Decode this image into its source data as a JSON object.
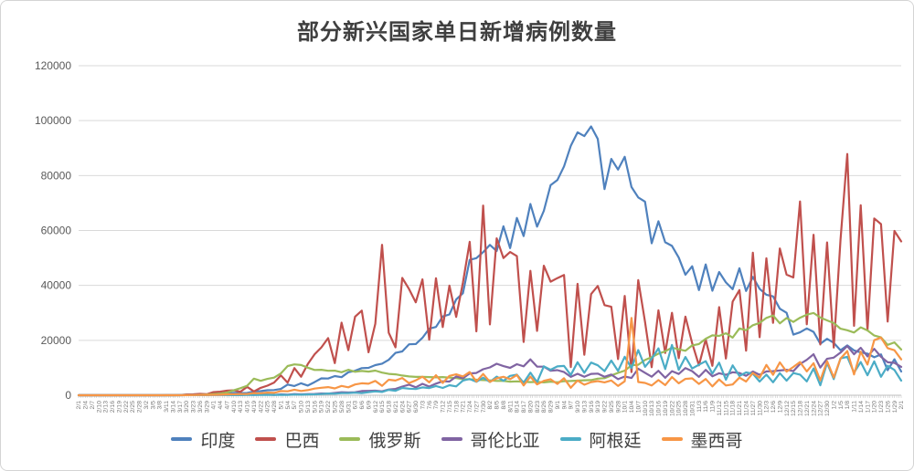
{
  "chart_data": {
    "type": "line",
    "title": "部分新兴国家单日新增病例数量",
    "xlabel": "",
    "ylabel": "",
    "ylim": [
      0,
      120000
    ],
    "y_ticks": [
      0,
      20000,
      40000,
      60000,
      80000,
      100000,
      120000
    ],
    "grid": "horizontal",
    "legend_position": "bottom",
    "x_label_interval_days": 3,
    "x_minor_tick_days": 1,
    "colors": {
      "grid": "#d9d9d9",
      "axis": "#bfbfbf",
      "y_label": "#595959",
      "x_label": "#757575",
      "title": "#3f3f3f"
    },
    "categories": [
      "2/1",
      "2/4",
      "2/7",
      "2/10",
      "2/13",
      "2/16",
      "2/19",
      "2/22",
      "2/25",
      "2/28",
      "3/2",
      "3/5",
      "3/8",
      "3/11",
      "3/14",
      "3/17",
      "3/20",
      "3/23",
      "3/26",
      "3/29",
      "4/1",
      "4/4",
      "4/7",
      "4/10",
      "4/13",
      "4/16",
      "4/19",
      "4/22",
      "4/25",
      "4/28",
      "5/1",
      "5/4",
      "5/7",
      "5/10",
      "5/13",
      "5/16",
      "5/19",
      "5/22",
      "5/25",
      "5/28",
      "5/31",
      "6/3",
      "6/6",
      "6/9",
      "6/12",
      "6/15",
      "6/18",
      "6/21",
      "6/24",
      "6/27",
      "6/30",
      "7/3",
      "7/6",
      "7/9",
      "7/12",
      "7/15",
      "7/18",
      "7/21",
      "7/24",
      "7/27",
      "7/30",
      "8/2",
      "8/5",
      "8/8",
      "8/11",
      "8/14",
      "8/17",
      "8/20",
      "8/23",
      "8/26",
      "8/29",
      "9/1",
      "9/4",
      "9/7",
      "9/10",
      "9/13",
      "9/16",
      "9/19",
      "9/22",
      "9/25",
      "9/28",
      "10/1",
      "10/4",
      "10/7",
      "10/10",
      "10/13",
      "10/16",
      "10/19",
      "10/22",
      "10/25",
      "10/28",
      "10/31",
      "11/3",
      "11/6",
      "11/9",
      "11/12",
      "11/15",
      "11/18",
      "11/21",
      "11/24",
      "11/27",
      "11/30",
      "12/3",
      "12/6",
      "12/9",
      "12/12",
      "12/15",
      "12/18",
      "12/21",
      "12/24",
      "12/27",
      "12/30",
      "1/2",
      "1/5",
      "1/8",
      "1/11",
      "1/14",
      "1/17",
      "1/20",
      "1/23",
      "1/26",
      "1/29",
      "2/1"
    ],
    "series": [
      {
        "name": "印度",
        "key": "india",
        "color": "#4F81BD",
        "values": [
          0,
          0,
          1,
          0,
          0,
          0,
          0,
          0,
          0,
          0,
          2,
          1,
          5,
          8,
          11,
          15,
          50,
          102,
          88,
          106,
          424,
          579,
          573,
          871,
          796,
          826,
          1371,
          1486,
          1835,
          1902,
          2293,
          3900,
          3344,
          4353,
          3525,
          4794,
          6154,
          6088,
          6977,
          6566,
          8380,
          8909,
          9887,
          9987,
          10956,
          11502,
          12881,
          15413,
          15968,
          18552,
          18653,
          20903,
          24248,
          24879,
          28701,
          29429,
          34884,
          37148,
          49310,
          49931,
          52123,
          54735,
          52509,
          61537,
          53601,
          64553,
          57981,
          69652,
          61408,
          67151,
          76472,
          78357,
          83341,
          90802,
          95735,
          94372,
          97894,
          93337,
          75083,
          86052,
          82170,
          86821,
          75829,
          72049,
          70496,
          55342,
          63371,
          55722,
          54366,
          50129,
          43893,
          46963,
          38310,
          47638,
          38073,
          44879,
          41100,
          38617,
          46232,
          37975,
          43082,
          38772,
          36595,
          36011,
          31522,
          30006,
          22065,
          22890,
          24337,
          23067,
          18732,
          20549,
          19078,
          16375,
          18139,
          16311,
          15590,
          15144,
          13823,
          14849,
          9102,
          13083,
          8635
        ]
      },
      {
        "name": "巴西",
        "key": "brazil",
        "color": "#C0504D",
        "values": [
          0,
          0,
          0,
          0,
          0,
          0,
          0,
          0,
          0,
          1,
          1,
          4,
          6,
          18,
          23,
          57,
          283,
          345,
          482,
          352,
          1119,
          1304,
          1661,
          1781,
          1261,
          3058,
          1389,
          2678,
          3503,
          4613,
          7218,
          4588,
          9888,
          6760,
          11385,
          14919,
          17408,
          20803,
          11687,
          26417,
          16409,
          28633,
          30830,
          15654,
          25982,
          54771,
          22765,
          17459,
          42725,
          38693,
          33846,
          42223,
          20229,
          42619,
          24831,
          39924,
          28532,
          41008,
          55891,
          23284,
          69074,
          25800,
          57152,
          49970,
          52160,
          50644,
          19373,
          45323,
          23421,
          47161,
          41350,
          42659,
          43773,
          10273,
          40557,
          14768,
          36820,
          39797,
          32817,
          32226,
          13155,
          36157,
          8456,
          41906,
          26749,
          10220,
          30914,
          15383,
          30026,
          13493,
          28629,
          18947,
          10917,
          20313,
          10704,
          32087,
          13371,
          34091,
          38307,
          16207,
          51922,
          21138,
          49863,
          26363,
          53453,
          43900,
          42889,
          70574,
          25822,
          58428,
          18479,
          55649,
          17341,
          56648,
          87843,
          25263,
          69198,
          23671,
          64385,
          62334,
          26816,
          59826,
          56002
        ]
      },
      {
        "name": "俄罗斯",
        "key": "russia",
        "color": "#9BBB59",
        "values": [
          0,
          0,
          0,
          0,
          0,
          0,
          0,
          0,
          0,
          0,
          0,
          0,
          3,
          8,
          14,
          21,
          52,
          71,
          182,
          270,
          440,
          582,
          954,
          1786,
          2558,
          3448,
          6060,
          5236,
          5966,
          6411,
          7933,
          10633,
          11231,
          11012,
          10028,
          9200,
          9263,
          8894,
          8946,
          8371,
          9268,
          8536,
          8855,
          8595,
          8987,
          8246,
          7790,
          7600,
          7176,
          6852,
          6693,
          6718,
          6611,
          6509,
          6615,
          6422,
          6234,
          5842,
          5811,
          5635,
          5509,
          5427,
          5204,
          5212,
          4945,
          5065,
          4892,
          4785,
          4852,
          4676,
          4941,
          4729,
          5110,
          5185,
          5310,
          5449,
          5529,
          6065,
          6215,
          7212,
          8135,
          8945,
          10888,
          11115,
          12846,
          13868,
          15150,
          15982,
          17340,
          16710,
          16202,
          18140,
          18648,
          20582,
          21798,
          21608,
          22572,
          20985,
          24318,
          23675,
          25487,
          26338,
          28145,
          29039,
          26190,
          28137,
          26689,
          28209,
          29350,
          29935,
          28284,
          27250,
          26301,
          24246,
          23652,
          22851,
          24715,
          23586,
          21734,
          21067,
          18359,
          19238,
          16643
        ]
      },
      {
        "name": "哥伦比亚",
        "key": "colombia",
        "color": "#8064A2",
        "values": [
          0,
          0,
          0,
          0,
          0,
          0,
          0,
          0,
          0,
          0,
          0,
          0,
          1,
          3,
          9,
          17,
          54,
          42,
          108,
          94,
          106,
          159,
          100,
          128,
          67,
          202,
          116,
          210,
          281,
          110,
          316,
          236,
          444,
          343,
          427,
          476,
          640,
          594,
          823,
          1101,
          984,
          1089,
          1514,
          1604,
          1646,
          1421,
          2106,
          2307,
          3171,
          3843,
          2882,
          4163,
          3171,
          4213,
          5083,
          4995,
          6803,
          6184,
          7945,
          8125,
          9488,
          10142,
          11470,
          10611,
          9965,
          11306,
          10549,
          13056,
          10425,
          10392,
          8919,
          9155,
          8451,
          6698,
          7813,
          6700,
          7787,
          7872,
          6731,
          7537,
          5839,
          6821,
          6299,
          9673,
          8176,
          6756,
          8896,
          6345,
          8769,
          7757,
          9891,
          8769,
          6698,
          9246,
          6926,
          8024,
          7458,
          8377,
          8120,
          7086,
          8657,
          7460,
          8679,
          8789,
          9005,
          9283,
          8782,
          11363,
          12892,
          14940,
          10057,
          13277,
          13695,
          15535,
          17908,
          14925,
          17270,
          14117,
          16871,
          13990,
          12001,
          11817,
          10344
        ]
      },
      {
        "name": "阿根廷",
        "key": "argentina",
        "color": "#4BACC6",
        "values": [
          0,
          0,
          0,
          0,
          0,
          0,
          0,
          0,
          0,
          0,
          0,
          0,
          1,
          2,
          3,
          10,
          30,
          36,
          75,
          55,
          88,
          103,
          87,
          81,
          69,
          127,
          102,
          144,
          173,
          124,
          156,
          104,
          255,
          206,
          285,
          345,
          438,
          648,
          552,
          769,
          795,
          929,
          774,
          1141,
          1391,
          1208,
          1958,
          1634,
          2648,
          2401,
          2262,
          2845,
          2632,
          3367,
          2657,
          3645,
          3223,
          5344,
          5929,
          4890,
          6377,
          4824,
          6792,
          5241,
          7043,
          7498,
          4557,
          8225,
          4741,
          10550,
          9276,
          10504,
          10684,
          7369,
          12027,
          8171,
          11892,
          10919,
          8782,
          12625,
          8841,
          14001,
          9909,
          16447,
          10324,
          13305,
          17096,
          9524,
          18326,
          9253,
          13924,
          9745,
          11100,
          12414,
          7893,
          11859,
          5645,
          10880,
          7025,
          8317,
          7846,
          4993,
          7519,
          4726,
          8037,
          5303,
          8078,
          7499,
          5031,
          9727,
          3634,
          11765,
          5884,
          13441,
          13962,
          8222,
          12112,
          7264,
          12332,
          6700,
          10753,
          9196,
          5331
        ]
      },
      {
        "name": "墨西哥",
        "key": "mexico",
        "color": "#F79646",
        "values": [
          0,
          0,
          0,
          0,
          0,
          0,
          0,
          0,
          0,
          0,
          0,
          0,
          1,
          3,
          4,
          11,
          32,
          65,
          110,
          145,
          163,
          202,
          346,
          375,
          442,
          450,
          764,
          729,
          970,
          852,
          1515,
          1434,
          1982,
          1562,
          1862,
          2437,
          2713,
          2960,
          2485,
          3377,
          2885,
          3912,
          4346,
          4199,
          5222,
          3427,
          5662,
          5343,
          6288,
          4410,
          5432,
          6740,
          4683,
          7280,
          4482,
          7051,
          7615,
          6859,
          8438,
          4973,
          7730,
          4853,
          6139,
          6717,
          5858,
          7371,
          3571,
          6775,
          3948,
          5267,
          5824,
          4129,
          6196,
          2711,
          5351,
          3813,
          4771,
          5167,
          4683,
          5401,
          3400,
          5099,
          28115,
          4828,
          4477,
          3542,
          5514,
          3699,
          6612,
          4360,
          5942,
          6151,
          4137,
          5931,
          3218,
          5746,
          3565,
          3918,
          6426,
          4973,
          8107,
          6388,
          11030,
          7455,
          11974,
          8608,
          10297,
          12057,
          8689,
          11653,
          5370,
          12406,
          6464,
          13345,
          16105,
          7594,
          15873,
          11170,
          20057,
          21007,
          17165,
          16374,
          13051
        ]
      }
    ]
  }
}
